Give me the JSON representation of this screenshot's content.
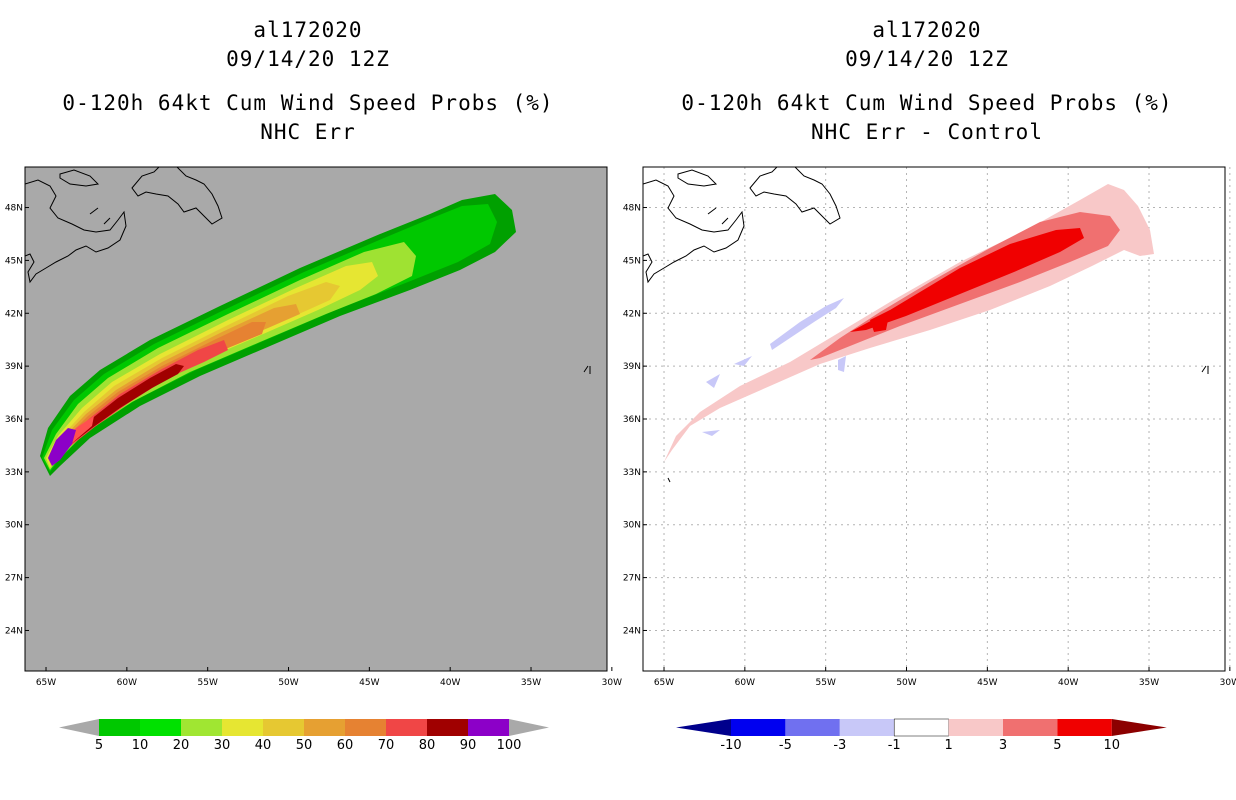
{
  "left_panel": {
    "storm_id": "al172020",
    "datetime": "09/14/20 12Z",
    "product": "0-120h 64kt Cum Wind Speed Probs (%)",
    "subtitle": "NHC Err",
    "background_color": "#a9a9a9",
    "colorbar": {
      "labels": [
        "5",
        "10",
        "20",
        "30",
        "40",
        "50",
        "60",
        "70",
        "80",
        "90",
        "100"
      ],
      "colors": [
        "#00a000",
        "#00c800",
        "#00e100",
        "#a0e632",
        "#e6e632",
        "#e6c832",
        "#e6a032",
        "#e68232",
        "#f04646",
        "#a00000",
        "#8c00c8"
      ],
      "extend_color": "#a9a9a9"
    }
  },
  "right_panel": {
    "storm_id": "al172020",
    "datetime": "09/14/20 12Z",
    "product": "0-120h 64kt Cum Wind Speed Probs (%)",
    "subtitle": "NHC Err - Control",
    "background_color": "#ffffff",
    "colorbar": {
      "labels": [
        "-10",
        "-5",
        "-3",
        "-1",
        "1",
        "3",
        "5",
        "10"
      ],
      "colors": [
        "#0000b4",
        "#0000f0",
        "#7070f0",
        "#c8c8f8",
        "#ffffff",
        "#f8c8c8",
        "#f07070",
        "#f00000"
      ],
      "extend_low": "#00008c",
      "extend_high": "#8c0000"
    }
  },
  "map": {
    "lat_labels": [
      "48N",
      "45N",
      "42N",
      "39N",
      "36N",
      "33N",
      "30N",
      "27N",
      "24N"
    ],
    "lon_labels": [
      "65W",
      "60W",
      "55W",
      "50W",
      "45W",
      "40W",
      "35W",
      "30W"
    ],
    "lat_values": [
      48,
      45,
      42,
      39,
      36,
      33,
      30,
      27,
      24
    ],
    "lon_values": [
      -65,
      -60,
      -55,
      -50,
      -45,
      -40,
      -35,
      -30
    ],
    "extent": {
      "lon_min": -66.3,
      "lon_max": -30.3,
      "lat_min": 21.7,
      "lat_max": 50.3
    }
  }
}
